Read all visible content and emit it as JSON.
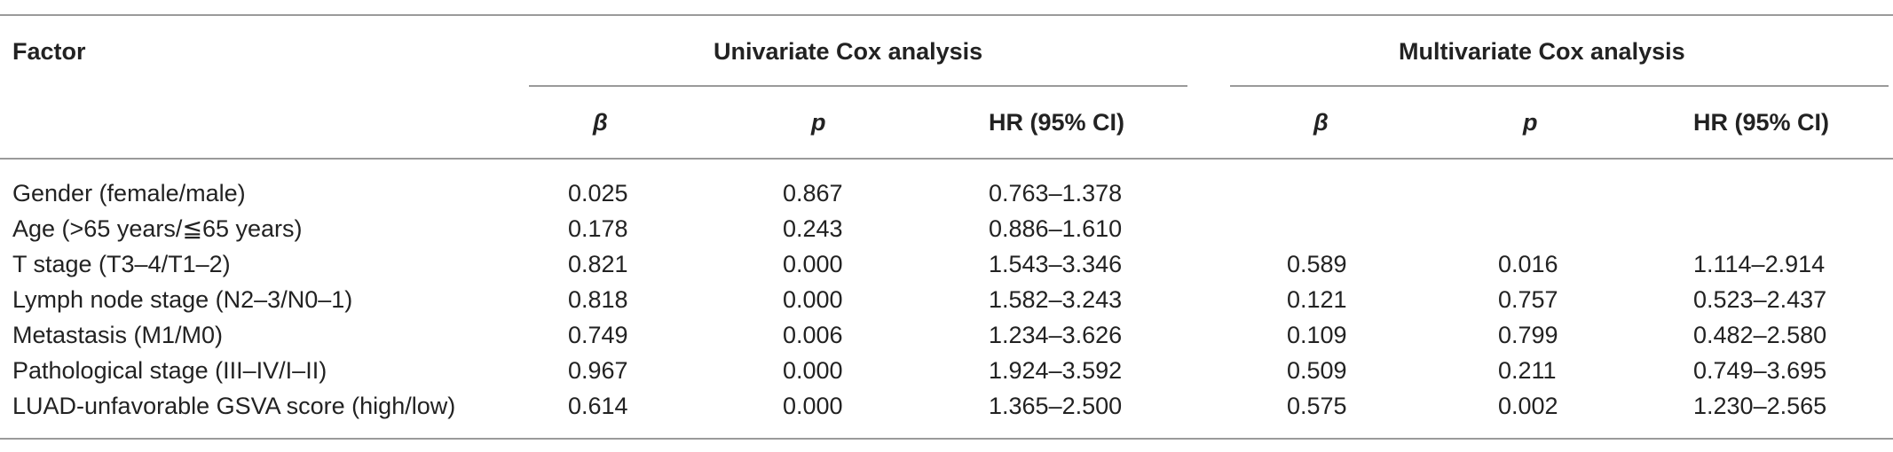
{
  "table": {
    "header": {
      "factor": "Factor",
      "group_univariate": "Univariate Cox analysis",
      "group_multivariate": "Multivariate Cox analysis",
      "sub_columns": [
        "β",
        "p",
        "HR (95% CI)",
        "β",
        "p",
        "HR (95% CI)"
      ]
    },
    "rows": [
      {
        "factor": "Gender (female/male)",
        "u_beta": "0.025",
        "u_p": "0.867",
        "u_hr": "0.763–1.378",
        "m_beta": "",
        "m_p": "",
        "m_hr": ""
      },
      {
        "factor": "Age (>65 years/≦65 years)",
        "u_beta": "0.178",
        "u_p": "0.243",
        "u_hr": "0.886–1.610",
        "m_beta": "",
        "m_p": "",
        "m_hr": ""
      },
      {
        "factor": "T stage (T3–4/T1–2)",
        "u_beta": "0.821",
        "u_p": "0.000",
        "u_hr": "1.543–3.346",
        "m_beta": "0.589",
        "m_p": "0.016",
        "m_hr": "1.114–2.914"
      },
      {
        "factor": "Lymph node stage (N2–3/N0–1)",
        "u_beta": "0.818",
        "u_p": "0.000",
        "u_hr": "1.582–3.243",
        "m_beta": "0.121",
        "m_p": "0.757",
        "m_hr": "0.523–2.437"
      },
      {
        "factor": "Metastasis (M1/M0)",
        "u_beta": "0.749",
        "u_p": "0.006",
        "u_hr": "1.234–3.626",
        "m_beta": "0.109",
        "m_p": "0.799",
        "m_hr": "0.482–2.580"
      },
      {
        "factor": "Pathological stage (III–IV/I–II)",
        "u_beta": "0.967",
        "u_p": "0.000",
        "u_hr": "1.924–3.592",
        "m_beta": "0.509",
        "m_p": "0.211",
        "m_hr": "0.749–3.695"
      },
      {
        "factor": "LUAD-unfavorable GSVA score (high/low)",
        "u_beta": "0.614",
        "u_p": "0.000",
        "u_hr": "1.365–2.500",
        "m_beta": "0.575",
        "m_p": "0.002",
        "m_hr": "1.230–2.565"
      }
    ]
  }
}
